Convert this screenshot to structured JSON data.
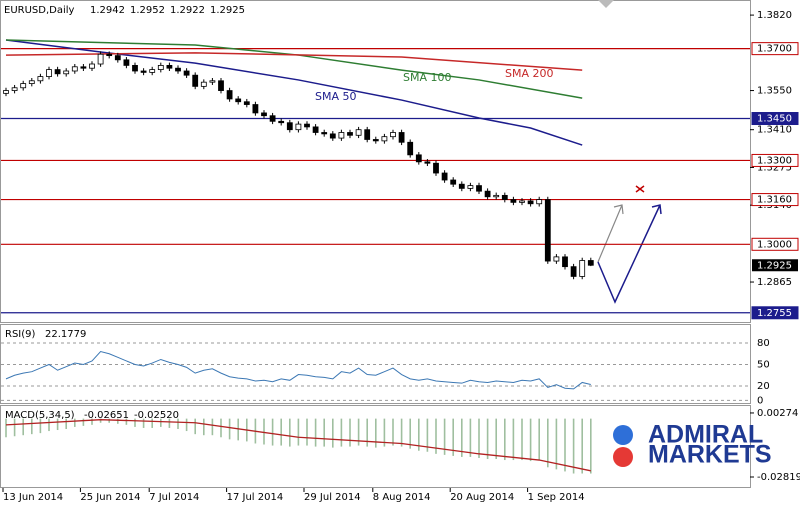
{
  "chart_data": [
    {
      "type": "candlestick",
      "title": "EURUSD,Daily",
      "categories": [
        "13 Jun 2014",
        null,
        null,
        null,
        null,
        null,
        null,
        null,
        null,
        "25 Jun 2014",
        null,
        null,
        null,
        null,
        null,
        null,
        null,
        "7 Jul 2014",
        null,
        null,
        null,
        null,
        null,
        null,
        null,
        null,
        "17 Jul 2014",
        null,
        null,
        null,
        null,
        null,
        null,
        null,
        null,
        "29 Jul 2014",
        null,
        null,
        null,
        null,
        null,
        null,
        null,
        "8 Aug 2014",
        null,
        null,
        null,
        null,
        null,
        null,
        null,
        null,
        "20 Aug 2014",
        null,
        null,
        null,
        null,
        null,
        null,
        null,
        null,
        "1 Sep 2014",
        null,
        null,
        null,
        null,
        null,
        null,
        null
      ],
      "candles": {
        "open": [
          1.354,
          1.355,
          1.356,
          1.3575,
          1.3585,
          1.36,
          1.3625,
          1.361,
          1.362,
          1.3635,
          1.363,
          1.3645,
          1.368,
          1.3675,
          1.366,
          1.364,
          1.362,
          1.3615,
          1.3625,
          1.364,
          1.363,
          1.362,
          1.3605,
          1.3565,
          1.358,
          1.3585,
          1.355,
          1.352,
          1.351,
          1.35,
          1.347,
          1.346,
          1.344,
          1.3435,
          1.341,
          1.343,
          1.342,
          1.34,
          1.3395,
          1.338,
          1.34,
          1.339,
          1.341,
          1.3375,
          1.337,
          1.3385,
          1.34,
          1.3365,
          1.332,
          1.3295,
          1.329,
          1.3255,
          1.323,
          1.3215,
          1.32,
          1.321,
          1.319,
          1.317,
          1.3175,
          1.316,
          1.315,
          1.3155,
          1.3145,
          1.316,
          1.294,
          1.2955,
          1.292,
          1.2885,
          1.2942
        ],
        "high": [
          1.356,
          1.357,
          1.3585,
          1.3595,
          1.361,
          1.3635,
          1.3635,
          1.363,
          1.3645,
          1.3645,
          1.3655,
          1.369,
          1.369,
          1.3685,
          1.367,
          1.365,
          1.363,
          1.3635,
          1.365,
          1.365,
          1.364,
          1.363,
          1.3615,
          1.359,
          1.3595,
          1.3595,
          1.356,
          1.353,
          1.352,
          1.351,
          1.348,
          1.347,
          1.345,
          1.3445,
          1.344,
          1.344,
          1.343,
          1.341,
          1.3405,
          1.341,
          1.341,
          1.342,
          1.342,
          1.3385,
          1.3395,
          1.341,
          1.341,
          1.3375,
          1.333,
          1.3305,
          1.33,
          1.3265,
          1.324,
          1.3225,
          1.322,
          1.322,
          1.32,
          1.3185,
          1.3185,
          1.317,
          1.3165,
          1.3165,
          1.317,
          1.317,
          1.2965,
          1.2965,
          1.293,
          1.2952,
          1.2952
        ],
        "low": [
          1.353,
          1.354,
          1.355,
          1.3565,
          1.3575,
          1.359,
          1.36,
          1.36,
          1.361,
          1.362,
          1.362,
          1.3635,
          1.3665,
          1.365,
          1.363,
          1.361,
          1.3605,
          1.3605,
          1.3615,
          1.362,
          1.361,
          1.3595,
          1.3555,
          1.3555,
          1.357,
          1.354,
          1.351,
          1.35,
          1.349,
          1.346,
          1.345,
          1.343,
          1.3425,
          1.34,
          1.34,
          1.341,
          1.339,
          1.3385,
          1.337,
          1.337,
          1.338,
          1.338,
          1.3365,
          1.336,
          1.336,
          1.3375,
          1.3355,
          1.331,
          1.3285,
          1.328,
          1.3245,
          1.322,
          1.3205,
          1.319,
          1.319,
          1.318,
          1.316,
          1.316,
          1.315,
          1.314,
          1.314,
          1.3135,
          1.3135,
          1.293,
          1.293,
          1.291,
          1.2875,
          1.2875,
          1.2922
        ],
        "close": [
          1.355,
          1.356,
          1.3575,
          1.3585,
          1.36,
          1.3625,
          1.361,
          1.362,
          1.3635,
          1.363,
          1.3645,
          1.368,
          1.3675,
          1.366,
          1.364,
          1.362,
          1.3615,
          1.3625,
          1.364,
          1.363,
          1.362,
          1.3605,
          1.3565,
          1.358,
          1.3585,
          1.355,
          1.352,
          1.351,
          1.35,
          1.347,
          1.346,
          1.344,
          1.3435,
          1.341,
          1.343,
          1.342,
          1.34,
          1.3395,
          1.338,
          1.34,
          1.339,
          1.341,
          1.3375,
          1.337,
          1.3385,
          1.34,
          1.3365,
          1.332,
          1.3295,
          1.329,
          1.3255,
          1.323,
          1.3215,
          1.32,
          1.321,
          1.319,
          1.317,
          1.3175,
          1.316,
          1.315,
          1.3155,
          1.3145,
          1.316,
          1.294,
          1.2955,
          1.292,
          1.2885,
          1.2942,
          1.2925
        ]
      },
      "lines": [
        {
          "name": "SMA 50",
          "color": "#1c1c8c",
          "x": [
            0,
            11,
            22,
            34,
            46,
            55,
            61,
            67
          ],
          "values": [
            1.3731,
            1.3688,
            1.3648,
            1.3588,
            1.3516,
            1.3452,
            1.3416,
            1.3355
          ]
        },
        {
          "name": "SMA 100",
          "color": "#2e7d32",
          "x": [
            0,
            22,
            34,
            46,
            55,
            67
          ],
          "values": [
            1.3731,
            1.3713,
            1.3677,
            1.3623,
            1.3588,
            1.3523
          ]
        },
        {
          "name": "SMA 200",
          "color": "#c62828",
          "x": [
            0,
            22,
            46,
            67
          ],
          "values": [
            1.3677,
            1.3685,
            1.367,
            1.3623
          ]
        }
      ],
      "levels": [
        {
          "value": 1.37,
          "label": "1.3700",
          "color": "#c00000"
        },
        {
          "value": 1.345,
          "label": "1.3450",
          "color": "#1c1c8c"
        },
        {
          "value": 1.33,
          "label": "1.3300",
          "color": "#c00000"
        },
        {
          "value": 1.316,
          "label": "1.3160",
          "color": "#c00000"
        },
        {
          "value": 1.3,
          "label": "1.3000",
          "color": "#c00000"
        },
        {
          "value": 1.2755,
          "label": "1.2755",
          "color": "#1c1c8c"
        }
      ],
      "ylim": [
        1.2722,
        1.3874
      ],
      "yticks": [
        {
          "value": 1.382,
          "label": "1.3820"
        },
        {
          "value": 1.355,
          "label": "1.3550"
        },
        {
          "value": 1.341,
          "label": "1.3410"
        },
        {
          "value": 1.3275,
          "label": "1.3275"
        },
        {
          "value": 1.314,
          "label": "1.3140"
        },
        {
          "value": 1.2865,
          "label": "1.2865"
        }
      ]
    },
    {
      "type": "line",
      "title": "RSI(9)",
      "series": [
        {
          "name": "RSI",
          "color": "#3c78b4",
          "values": [
            30,
            35,
            38,
            40,
            45,
            50,
            42,
            47,
            52,
            50,
            55,
            68,
            65,
            60,
            55,
            50,
            48,
            52,
            57,
            53,
            50,
            46,
            38,
            42,
            44,
            38,
            33,
            31,
            30,
            27,
            28,
            26,
            30,
            28,
            36,
            35,
            33,
            32,
            30,
            40,
            38,
            45,
            36,
            35,
            40,
            45,
            36,
            30,
            28,
            30,
            27,
            26,
            25,
            24,
            28,
            26,
            25,
            27,
            26,
            25,
            28,
            27,
            30,
            18,
            22,
            17,
            16,
            25,
            22.1779
          ]
        }
      ],
      "ylim": [
        -5,
        105
      ],
      "yticks": [
        80,
        50,
        20,
        0
      ]
    },
    {
      "type": "bar",
      "title": "MACD(5,34,5)",
      "series": [
        {
          "name": "MACD",
          "color": "#9fbf9f",
          "values": [
            -0.009,
            -0.0085,
            -0.008,
            -0.0075,
            -0.007,
            -0.006,
            -0.0055,
            -0.005,
            -0.004,
            -0.0035,
            -0.003,
            -0.002,
            -0.002,
            -0.0025,
            -0.003,
            -0.004,
            -0.0045,
            -0.0045,
            -0.004,
            -0.0045,
            -0.005,
            -0.006,
            -0.0075,
            -0.008,
            -0.008,
            -0.009,
            -0.01,
            -0.0105,
            -0.011,
            -0.012,
            -0.0125,
            -0.013,
            -0.013,
            -0.0135,
            -0.013,
            -0.013,
            -0.0135,
            -0.0135,
            -0.014,
            -0.0135,
            -0.0135,
            -0.013,
            -0.0135,
            -0.014,
            -0.0135,
            -0.013,
            -0.0135,
            -0.0145,
            -0.0155,
            -0.016,
            -0.017,
            -0.0175,
            -0.018,
            -0.0185,
            -0.0185,
            -0.019,
            -0.0195,
            -0.0195,
            -0.02,
            -0.02,
            -0.02,
            -0.0205,
            -0.02,
            -0.0235,
            -0.0245,
            -0.0255,
            -0.0265,
            -0.0265,
            -0.02651
          ]
        },
        {
          "name": "Signal",
          "color": "#b22222",
          "x": [
            0,
            11,
            22,
            34,
            46,
            55,
            62,
            68
          ],
          "values": [
            -0.003,
            -0.0005,
            -0.002,
            -0.009,
            -0.012,
            -0.017,
            -0.02,
            -0.0252
          ],
          "value_labels": [
            null,
            null,
            null,
            null,
            null,
            null,
            null,
            "-0.02520"
          ]
        }
      ],
      "ylim": [
        -0.0335,
        0.0061
      ],
      "yticks": [
        0.00274,
        -0.02819
      ]
    }
  ],
  "logo": {
    "line1": "ADMIRAL",
    "line2": "MARKETS"
  }
}
